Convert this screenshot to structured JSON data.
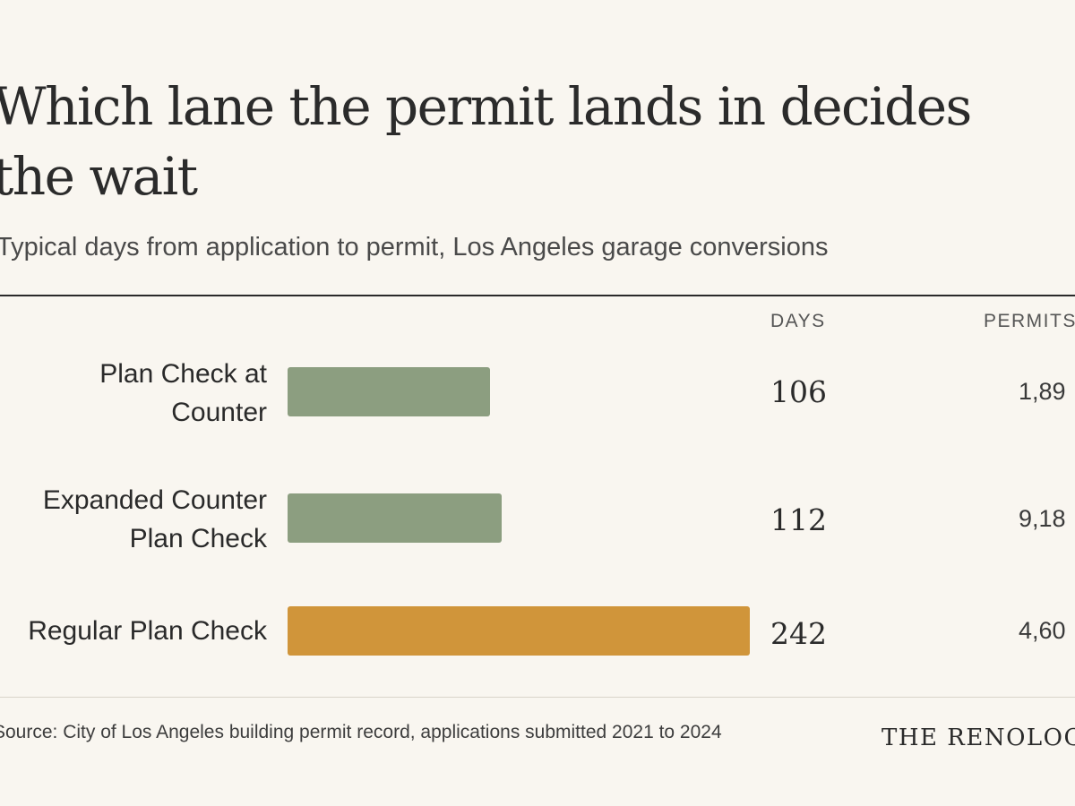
{
  "chart_data": {
    "type": "bar",
    "orientation": "horizontal",
    "title": "Which lane the permit lands in decides\nthe wait",
    "subtitle": "Typical days from application to permit, Los Angeles garage conversions",
    "columns": {
      "days": "DAYS",
      "permits": "PERMITS"
    },
    "categories": [
      "Plan Check at\nCounter",
      "Expanded Counter\nPlan Check",
      "Regular Plan Check"
    ],
    "series": [
      {
        "values": [
          106,
          112,
          242
        ]
      }
    ],
    "days_labels": [
      "106",
      "112",
      "242"
    ],
    "permit_labels": [
      "1,89",
      "9,18",
      "4,60"
    ],
    "bar_colors": [
      "#8c9e80",
      "#8c9e80",
      "#d0953a"
    ],
    "xlim": [
      0,
      242
    ],
    "grid": false,
    "source": "Source: City of Los Angeles building permit record, applications submitted 2021 to 2024",
    "brand": "THE RENOLOGY"
  }
}
